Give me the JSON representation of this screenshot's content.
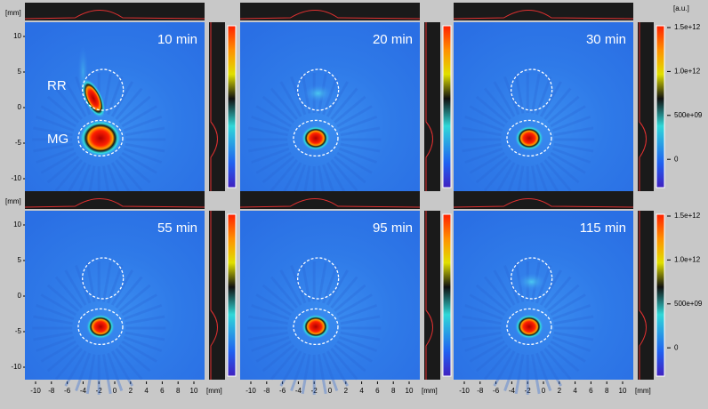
{
  "panels": [
    {
      "time": "10 min"
    },
    {
      "time": "20 min"
    },
    {
      "time": "30 min"
    },
    {
      "time": "55 min"
    },
    {
      "time": "95 min"
    },
    {
      "time": "115 min"
    }
  ],
  "roi_labels": {
    "rr": "RR",
    "mg": "MG"
  },
  "y_axis": {
    "unit": "[mm]",
    "ticks": [
      10,
      5,
      0,
      -5,
      -10
    ]
  },
  "x_axis": {
    "unit": "[mm]",
    "ticks": [
      -10,
      -8,
      -6,
      -4,
      -2,
      0,
      2,
      4,
      6,
      8,
      10
    ]
  },
  "colorbar": {
    "unit": "[a.u.]",
    "ticks": [
      {
        "value": 1500000000000,
        "label": "1.5e+12"
      },
      {
        "value": 1000000000000,
        "label": "1.0e+12"
      },
      {
        "value": 500000000000,
        "label": "500e+09"
      },
      {
        "value": 0,
        "label": "0"
      }
    ]
  }
}
